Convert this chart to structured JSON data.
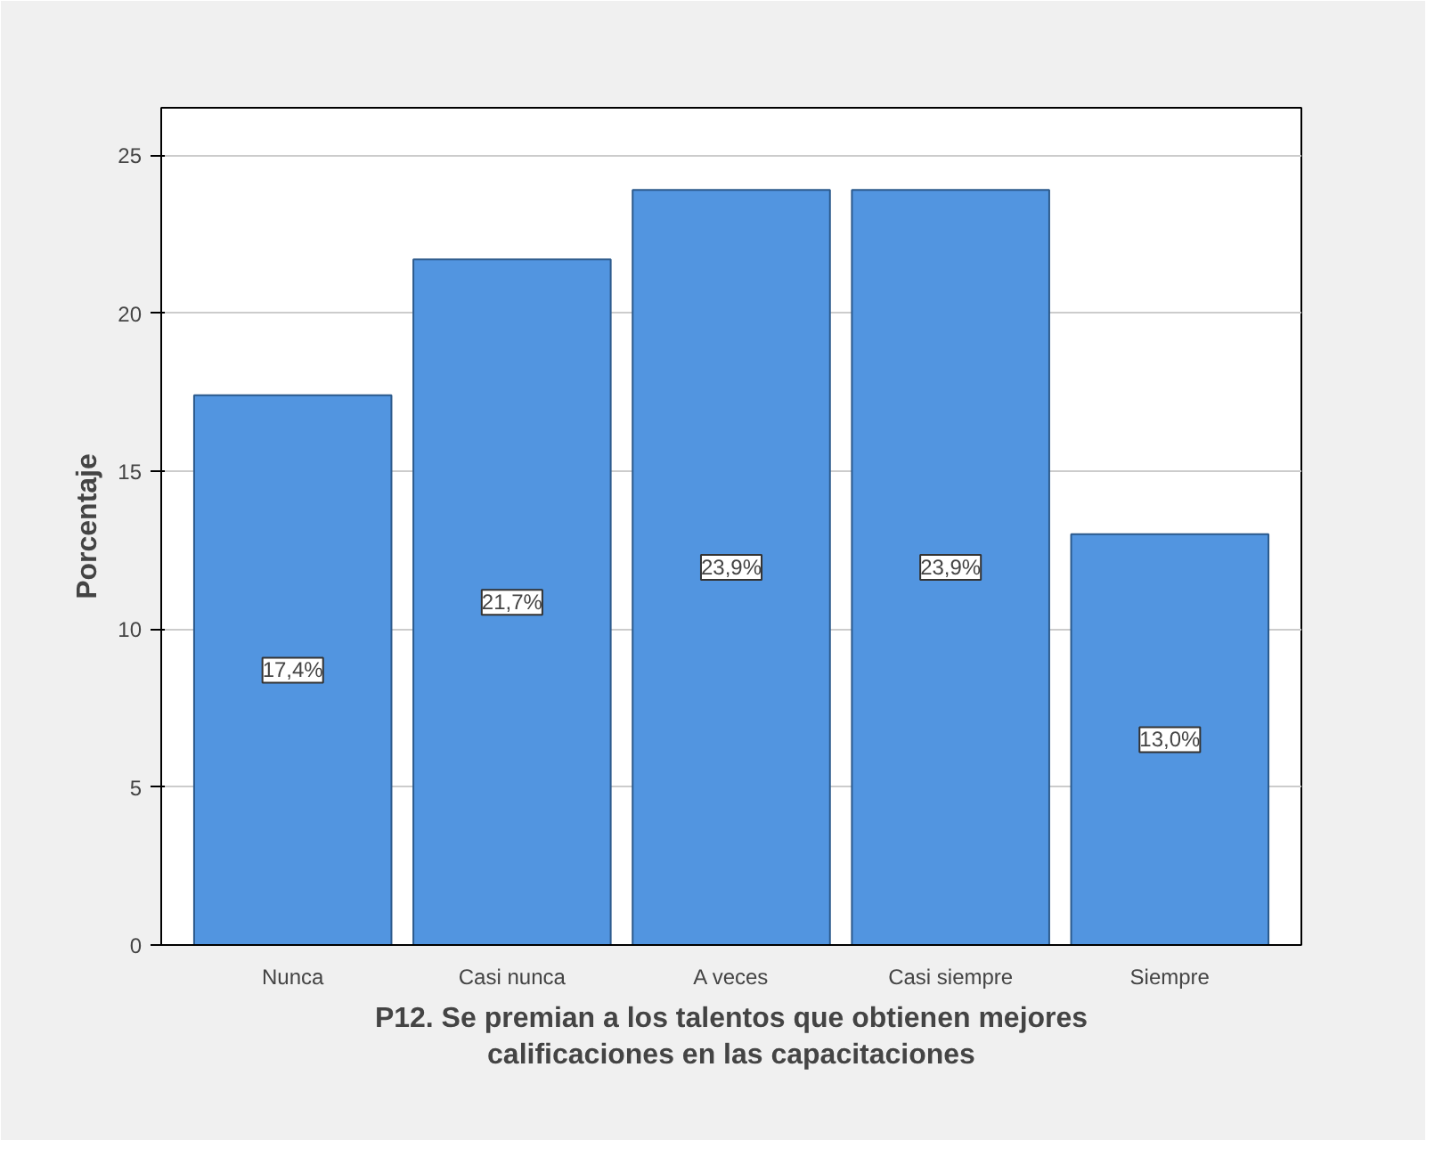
{
  "chart_data": {
    "type": "bar",
    "xlabel": "P12. Se premian a los talentos que obtienen mejores calificaciones en las capacitaciones",
    "ylabel": "Porcentaje",
    "categories": [
      "Nunca",
      "Casi nunca",
      "A veces",
      "Casi siempre",
      "Siempre"
    ],
    "values": [
      17.4,
      21.7,
      23.9,
      23.9,
      13.0
    ],
    "value_labels": [
      "17,4%",
      "21,7%",
      "23,9%",
      "23,9%",
      "13,0%"
    ],
    "color": "#5295e0",
    "ylim": [
      0,
      26.5
    ],
    "yticks": [
      0,
      5,
      10,
      15,
      20,
      25
    ],
    "grid": "y"
  }
}
